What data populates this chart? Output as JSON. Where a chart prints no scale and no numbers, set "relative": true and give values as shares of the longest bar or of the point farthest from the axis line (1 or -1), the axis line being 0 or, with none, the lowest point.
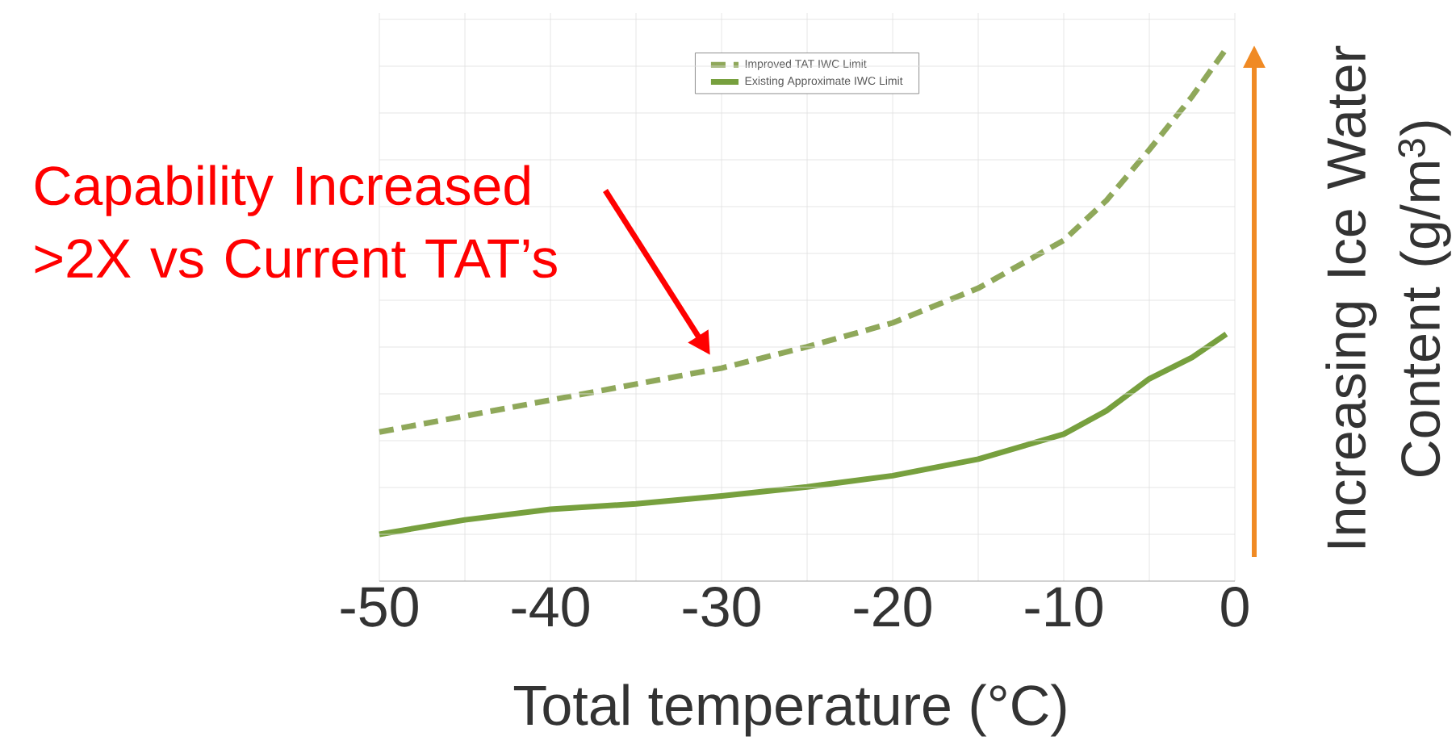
{
  "chart_data": {
    "type": "line",
    "relative": true,
    "xlabel": "Total temperature (°C)",
    "ylabel": "Increasing Ice Water Content (g/m$^{3}$)",
    "x": [
      -50,
      -45,
      -40,
      -35,
      -30,
      -25,
      -20,
      -15,
      -10,
      -7.5,
      -5,
      -2.5,
      -0.5
    ],
    "series": [
      {
        "name": "Improved TAT IWC Limit",
        "color": "#8fa85a",
        "line_style": "dashed",
        "values": [
          0.28,
          0.31,
          0.34,
          0.37,
          0.4,
          0.44,
          0.485,
          0.55,
          0.64,
          0.715,
          0.81,
          0.91,
          1.0
        ]
      },
      {
        "name": "Existing Approximate IWC Limit",
        "color": "#77a03e",
        "line_style": "solid",
        "values": [
          0.088,
          0.115,
          0.135,
          0.145,
          0.16,
          0.177,
          0.198,
          0.229,
          0.276,
          0.32,
          0.38,
          0.42,
          0.464
        ]
      }
    ],
    "xlim": [
      -50,
      0
    ],
    "xticks": [
      -50,
      -40,
      -30,
      -20,
      -10,
      0
    ],
    "grid": true,
    "legend": "top",
    "annotations": [
      "Capability Increased >2X vs Current TAT’s"
    ]
  }
}
